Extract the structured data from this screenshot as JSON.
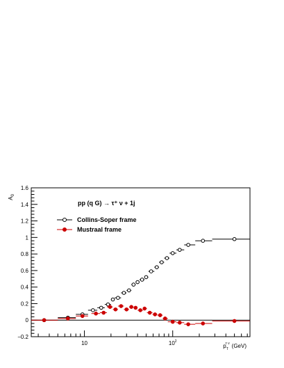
{
  "chart_data": {
    "type": "scatter",
    "title": "pp (q G) → τ⁺ ν + 1j",
    "ylabel": "A₀",
    "xlabel": "p_T^{τ ν} (GeV)",
    "xscale": "log",
    "xlim": [
      2.5,
      750
    ],
    "ylim": [
      -0.2,
      1.6
    ],
    "yticks": [
      -0.2,
      0,
      0.2,
      0.4,
      0.6,
      0.8,
      1,
      1.2,
      1.4,
      1.6
    ],
    "yticklabels": [
      "−0.2",
      "0",
      "0.2",
      "0.4",
      "0.6",
      "0.8",
      "1",
      "1.2",
      "1.4",
      "1.6"
    ],
    "xticks": [
      10,
      100
    ],
    "xticklabels": [
      "10",
      "10²"
    ],
    "reference_line_y": 0,
    "legend_placement": "top-left",
    "series": [
      {
        "name": "Collins-Soper frame",
        "color": "#000000",
        "marker": "open-circle",
        "points": [
          {
            "x": 3.5,
            "y": 0.0,
            "xlo": 2.5,
            "xhi": 5
          },
          {
            "x": 6.5,
            "y": 0.03,
            "xlo": 5,
            "xhi": 8
          },
          {
            "x": 9.5,
            "y": 0.07,
            "xlo": 8,
            "xhi": 11
          },
          {
            "x": 12.5,
            "y": 0.12,
            "xlo": 11,
            "xhi": 14
          },
          {
            "x": 15.5,
            "y": 0.15,
            "xlo": 14,
            "xhi": 17
          },
          {
            "x": 18.5,
            "y": 0.19,
            "xlo": 17,
            "xhi": 20
          },
          {
            "x": 21,
            "y": 0.25,
            "xlo": 20,
            "xhi": 22
          },
          {
            "x": 24,
            "y": 0.27,
            "xlo": 22,
            "xhi": 26
          },
          {
            "x": 28,
            "y": 0.33,
            "xlo": 26,
            "xhi": 30
          },
          {
            "x": 32,
            "y": 0.36,
            "xlo": 30,
            "xhi": 34
          },
          {
            "x": 36,
            "y": 0.43,
            "xlo": 34,
            "xhi": 38
          },
          {
            "x": 40,
            "y": 0.46,
            "xlo": 38,
            "xhi": 42
          },
          {
            "x": 45,
            "y": 0.49,
            "xlo": 42,
            "xhi": 48
          },
          {
            "x": 50,
            "y": 0.52,
            "xlo": 48,
            "xhi": 53
          },
          {
            "x": 57,
            "y": 0.59,
            "xlo": 53,
            "xhi": 62
          },
          {
            "x": 66,
            "y": 0.64,
            "xlo": 62,
            "xhi": 70
          },
          {
            "x": 75,
            "y": 0.7,
            "xlo": 70,
            "xhi": 80
          },
          {
            "x": 86,
            "y": 0.75,
            "xlo": 80,
            "xhi": 92
          },
          {
            "x": 100,
            "y": 0.81,
            "xlo": 92,
            "xhi": 110
          },
          {
            "x": 120,
            "y": 0.85,
            "xlo": 110,
            "xhi": 135
          },
          {
            "x": 150,
            "y": 0.91,
            "xlo": 135,
            "xhi": 180
          },
          {
            "x": 220,
            "y": 0.96,
            "xlo": 180,
            "xhi": 280
          },
          {
            "x": 500,
            "y": 0.98,
            "xlo": 280,
            "xhi": 750
          }
        ]
      },
      {
        "name": "Mustraal frame",
        "color": "#cc0000",
        "marker": "filled-circle",
        "points": [
          {
            "x": 3.5,
            "y": 0.0,
            "xlo": 2.5,
            "xhi": 5
          },
          {
            "x": 6.5,
            "y": 0.02,
            "xlo": 5,
            "xhi": 8
          },
          {
            "x": 9.5,
            "y": 0.05,
            "xlo": 8,
            "xhi": 11
          },
          {
            "x": 13.5,
            "y": 0.08,
            "xlo": 12,
            "xhi": 15
          },
          {
            "x": 16.5,
            "y": 0.09,
            "xlo": 15,
            "xhi": 18
          },
          {
            "x": 19.5,
            "y": 0.16,
            "xlo": 18,
            "xhi": 21
          },
          {
            "x": 22.5,
            "y": 0.13,
            "xlo": 21,
            "xhi": 24
          },
          {
            "x": 26,
            "y": 0.17,
            "xlo": 24,
            "xhi": 28
          },
          {
            "x": 30,
            "y": 0.13,
            "xlo": 28,
            "xhi": 32
          },
          {
            "x": 34,
            "y": 0.16,
            "xlo": 32,
            "xhi": 36
          },
          {
            "x": 38,
            "y": 0.15,
            "xlo": 36,
            "xhi": 40
          },
          {
            "x": 43,
            "y": 0.12,
            "xlo": 40,
            "xhi": 46
          },
          {
            "x": 48,
            "y": 0.14,
            "xlo": 46,
            "xhi": 51
          },
          {
            "x": 55,
            "y": 0.09,
            "xlo": 51,
            "xhi": 59
          },
          {
            "x": 63,
            "y": 0.07,
            "xlo": 59,
            "xhi": 67
          },
          {
            "x": 72,
            "y": 0.06,
            "xlo": 67,
            "xhi": 77
          },
          {
            "x": 82,
            "y": 0.02,
            "xlo": 77,
            "xhi": 88
          },
          {
            "x": 100,
            "y": -0.02,
            "xlo": 88,
            "xhi": 110
          },
          {
            "x": 120,
            "y": -0.03,
            "xlo": 110,
            "xhi": 135
          },
          {
            "x": 150,
            "y": -0.05,
            "xlo": 135,
            "xhi": 180
          },
          {
            "x": 220,
            "y": -0.04,
            "xlo": 180,
            "xhi": 280
          },
          {
            "x": 500,
            "y": -0.01,
            "xlo": 280,
            "xhi": 750
          }
        ]
      }
    ]
  }
}
